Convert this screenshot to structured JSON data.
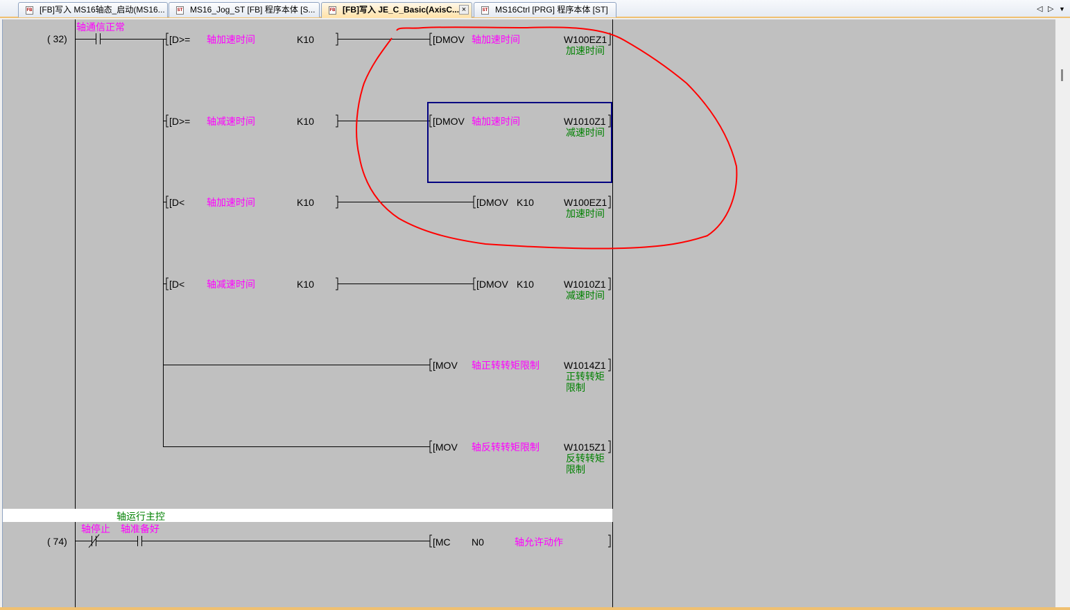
{
  "tabs": [
    {
      "label": "[FB]写入 MS16轴态_启动(MS16...",
      "icon": "fb-icon",
      "active": false
    },
    {
      "label": "MS16_Jog_ST [FB] 程序本体 [S...",
      "icon": "st-icon",
      "active": false
    },
    {
      "label": "[FB]写入 JE_C_Basic(AxisC...",
      "icon": "fb-icon",
      "active": true,
      "close": "×"
    },
    {
      "label": "MS16Ctrl [PRG] 程序本体 [ST]",
      "icon": "st-icon",
      "active": false
    }
  ],
  "tab_nav": {
    "prev": "◁",
    "next": "▷",
    "menu": "▼"
  },
  "rung1": {
    "step": "(   32)",
    "contact_label": "轴通信正常",
    "rows": [
      {
        "cmp": "[D>=",
        "op1": "轴加速时间",
        "op2": "K10",
        "close": "]",
        "instr": "[DMOV",
        "src": "轴加速时间",
        "dst": "W100EZ1",
        "dst_comment": "加速时间"
      },
      {
        "cmp": "[D>=",
        "op1": "轴减速时间",
        "op2": "K10",
        "close": "]",
        "instr": "[DMOV",
        "src": "轴加速时间",
        "dst": "W1010Z1",
        "dst_comment": "减速时间"
      },
      {
        "cmp": "[D<",
        "op1": "轴加速时间",
        "op2": "K10",
        "close": "]",
        "instr": "[DMOV",
        "src": "K10",
        "dst": "W100EZ1",
        "dst_comment": "加速时间"
      },
      {
        "cmp": "[D<",
        "op1": "轴减速时间",
        "op2": "K10",
        "close": "]",
        "instr": "[DMOV",
        "src": "K10",
        "dst": "W1010Z1",
        "dst_comment": "减速时间"
      },
      {
        "instr": "[MOV",
        "src": "轴正转转矩限制",
        "dst": "W1014Z1",
        "dst_comment1": "正转转矩",
        "dst_comment2": "限制"
      },
      {
        "instr": "[MOV",
        "src": "轴反转转矩限制",
        "dst": "W1015Z1",
        "dst_comment1": "反转转矩",
        "dst_comment2": "限制"
      }
    ]
  },
  "statement": "轴运行主控",
  "rung2": {
    "step": "(   74)",
    "contact1": "轴停止",
    "contact2": "轴准备好",
    "instr": "[MC",
    "n": "N0",
    "device": "轴允许动作",
    "close": "]"
  },
  "colors": {
    "background": "#c0c0c0",
    "device_comment": "#ff00ff",
    "label_comment": "#008000",
    "selection": "#000080",
    "annotation": "#ff0000"
  }
}
